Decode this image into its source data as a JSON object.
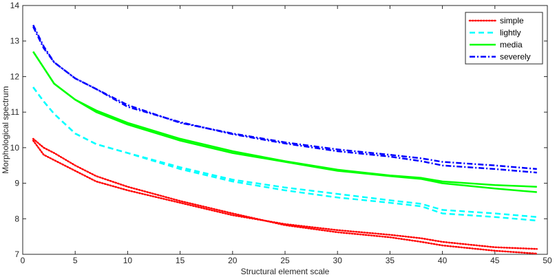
{
  "chart_data": {
    "type": "line",
    "xlabel": "Structural element scale",
    "ylabel": "Morphological spectrum",
    "xlim": [
      0,
      50
    ],
    "ylim": [
      7,
      14
    ],
    "xticks": [
      0,
      5,
      10,
      15,
      20,
      25,
      30,
      35,
      40,
      45,
      50
    ],
    "yticks": [
      7,
      8,
      9,
      10,
      11,
      12,
      13,
      14
    ],
    "grid": false,
    "legend_position": "top-right",
    "x": [
      1,
      2,
      3,
      5,
      7,
      10,
      15,
      20,
      25,
      30,
      35,
      38,
      40,
      45,
      49
    ],
    "series": [
      {
        "name": "simple",
        "color": "#ff0000",
        "style": "dotted",
        "lines": [
          [
            10.25,
            10.0,
            9.85,
            9.5,
            9.2,
            8.9,
            8.5,
            8.15,
            7.82,
            7.62,
            7.48,
            7.35,
            7.25,
            7.1,
            7.02
          ],
          [
            10.2,
            9.8,
            9.65,
            9.35,
            9.05,
            8.8,
            8.45,
            8.1,
            7.85,
            7.68,
            7.55,
            7.45,
            7.35,
            7.2,
            7.15
          ]
        ]
      },
      {
        "name": "lightly",
        "color": "#00ffff",
        "style": "dashed",
        "lines": [
          [
            11.7,
            11.3,
            10.95,
            10.4,
            10.1,
            9.85,
            9.4,
            9.05,
            8.8,
            8.6,
            8.45,
            8.35,
            8.15,
            8.05,
            7.95
          ],
          [
            11.7,
            11.3,
            10.95,
            10.4,
            10.1,
            9.85,
            9.45,
            9.1,
            8.88,
            8.7,
            8.52,
            8.42,
            8.25,
            8.15,
            8.05
          ]
        ]
      },
      {
        "name": "media",
        "color": "#00ff00",
        "style": "solid",
        "lines": [
          [
            12.7,
            12.25,
            11.8,
            11.35,
            11.0,
            10.65,
            10.2,
            9.85,
            9.6,
            9.35,
            9.2,
            9.12,
            9.0,
            8.85,
            8.75
          ],
          [
            12.7,
            12.25,
            11.8,
            11.35,
            11.05,
            10.7,
            10.25,
            9.9,
            9.62,
            9.38,
            9.22,
            9.15,
            9.05,
            8.95,
            8.9
          ]
        ]
      },
      {
        "name": "severely",
        "color": "#0000ff",
        "style": "dashdot",
        "lines": [
          [
            13.45,
            12.85,
            12.4,
            11.95,
            11.65,
            11.2,
            10.7,
            10.4,
            10.15,
            9.95,
            9.8,
            9.7,
            9.6,
            9.5,
            9.4
          ],
          [
            13.4,
            12.8,
            12.4,
            11.95,
            11.65,
            11.15,
            10.72,
            10.38,
            10.12,
            9.9,
            9.75,
            9.62,
            9.5,
            9.4,
            9.3
          ]
        ]
      }
    ]
  }
}
